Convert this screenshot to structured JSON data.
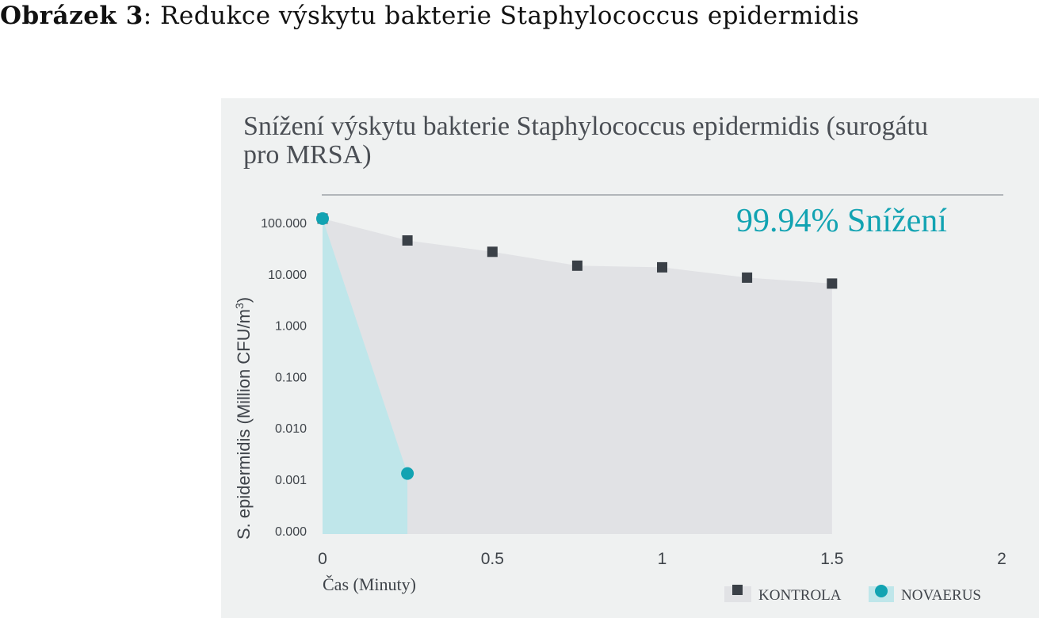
{
  "caption": {
    "label": "Obrázek 3",
    "text": ": Redukce výskytu bakterie Staphylococcus epidermidis"
  },
  "chart_data": {
    "type": "area",
    "title_lines": [
      "Snížení výskytu bakterie Staphylococcus epidermidis (surogátu",
      "pro MRSA)"
    ],
    "xlabel": "Čas (Minuty)",
    "ylabel": "S. epidermidis (Million CFU/m",
    "ylabel_sup": "3",
    "ylabel_close": ")",
    "xlim": [
      0,
      2
    ],
    "x_ticks": [
      0,
      0.5,
      1,
      1.5,
      2
    ],
    "x_tick_labels": [
      "0",
      "0.5",
      "1",
      "1.5",
      "2"
    ],
    "y_scale": "log",
    "y_tick_labels": [
      "100.000",
      "10.000",
      "1.000",
      "0.100",
      "0.010",
      "0.001",
      "0.000"
    ],
    "annotation": "99.94% Snížení",
    "legend_position": "bottom-right",
    "colors": {
      "kontrola_marker": "#3a4047",
      "kontrola_fill": "#e1e2e5",
      "novaerus_marker": "#12a3b2",
      "novaerus_fill": "#bfe6ea",
      "annotation": "#12a3b2",
      "background": "#eff1f1"
    },
    "series": [
      {
        "name": "KONTROLA",
        "marker": "square",
        "x": [
          0,
          0.25,
          0.5,
          0.75,
          1,
          1.25,
          1.5
        ],
        "y": [
          120,
          45,
          27,
          14.5,
          13.5,
          8.5,
          6.5
        ]
      },
      {
        "name": "NOVAERUS",
        "marker": "circle",
        "x": [
          0,
          0.25
        ],
        "y": [
          120,
          0.0013
        ]
      }
    ]
  }
}
